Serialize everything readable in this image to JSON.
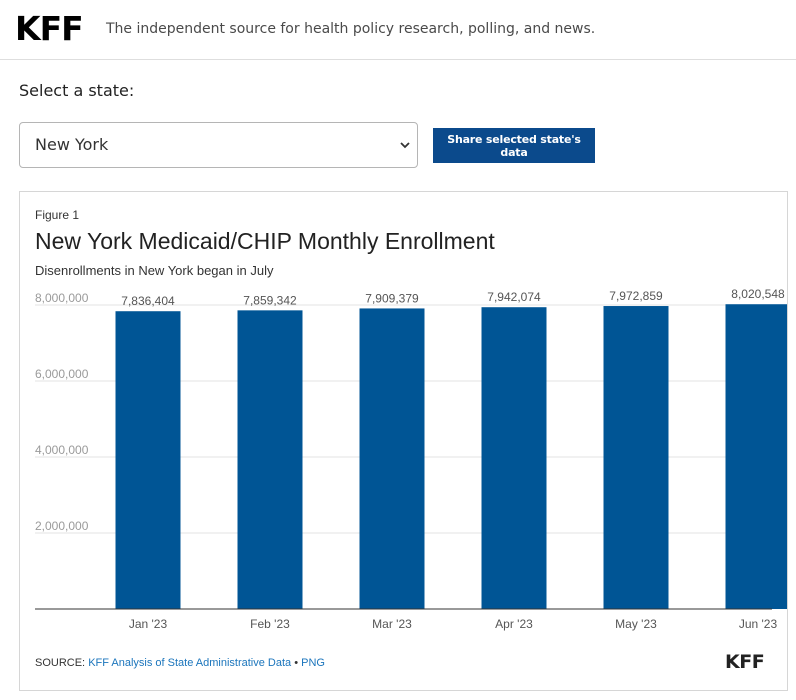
{
  "header": {
    "logo": "KFF",
    "tagline": "The independent source for health policy research, polling, and news."
  },
  "selector": {
    "label": "Select a state:",
    "value": "New York",
    "share_label": "Share selected state's data"
  },
  "figure": {
    "label": "Figure 1",
    "source_prefix": "SOURCE: ",
    "source_link": "KFF Analysis of State Administrative Data",
    "source_sep": " • ",
    "png_link": "PNG",
    "logo": "KFF"
  },
  "colors": {
    "bar": "#005595",
    "button": "#0b4a8c",
    "link": "#1b75bc"
  },
  "chart_data": {
    "type": "bar",
    "title": "New York Medicaid/CHIP Monthly Enrollment",
    "subtitle": "Disenrollments in New York began in July",
    "categories": [
      "Jan '23",
      "Feb '23",
      "Mar '23",
      "Apr '23",
      "May '23",
      "Jun '23"
    ],
    "values": [
      7836404,
      7859342,
      7909379,
      7942074,
      7972859,
      8020548
    ],
    "data_labels": [
      "7,836,404",
      "7,859,342",
      "7,909,379",
      "7,942,074",
      "7,972,859",
      "8,020,548"
    ],
    "yticks": [
      2000000,
      4000000,
      6000000,
      8000000
    ],
    "ytick_labels": [
      "2,000,000",
      "4,000,000",
      "6,000,000",
      "8,000,000"
    ],
    "ylim": [
      0,
      8000000
    ],
    "grid": true,
    "legend": false
  }
}
